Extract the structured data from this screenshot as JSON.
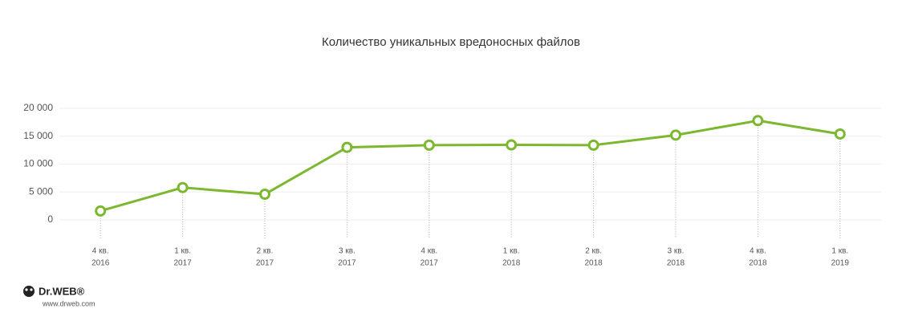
{
  "chart_data": {
    "type": "line",
    "title": "Количество уникальных вредоносных файлов",
    "categories": [
      [
        "4 кв.",
        "2016"
      ],
      [
        "1 кв.",
        "2017"
      ],
      [
        "2 кв.",
        "2017"
      ],
      [
        "3 кв.",
        "2017"
      ],
      [
        "4 кв.",
        "2017"
      ],
      [
        "1 кв.",
        "2018"
      ],
      [
        "2 кв.",
        "2018"
      ],
      [
        "3 кв.",
        "2018"
      ],
      [
        "4 кв.",
        "2018"
      ],
      [
        "1 кв.",
        "2019"
      ]
    ],
    "series": [
      {
        "color": "#7cb82f",
        "values": [
          1600,
          5800,
          4600,
          13000,
          13400,
          13450,
          13400,
          15200,
          17800,
          15400
        ]
      }
    ],
    "ylim": [
      0,
      20000
    ],
    "yticks": [
      0,
      {
        "value": 5000,
        "label": "5 000"
      },
      {
        "value": 10000,
        "label": "10 000"
      },
      {
        "value": 15000,
        "label": "15 000"
      },
      {
        "value": 20000,
        "label": "20 000"
      }
    ],
    "grid": true
  },
  "footer": {
    "brand": "Dr.WEB®",
    "url": "www.drweb.com"
  }
}
